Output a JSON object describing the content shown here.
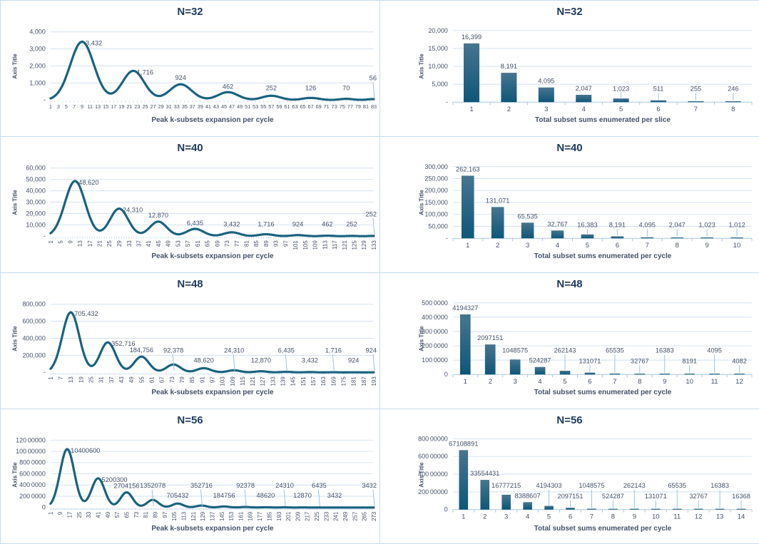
{
  "palette": {
    "series": "#1a627f",
    "bar_top": "#477590",
    "bar_bottom": "#0e5678",
    "title": "#1e3a5f",
    "text": "#44506b",
    "grid": "#d3e1f0",
    "axis": "#a9c7e2",
    "leader": "#9cc3e0",
    "comb": "#a3c2da",
    "border": "#c6dbee"
  },
  "chart_data": [
    {
      "type": "line",
      "title": "N=32",
      "ylabel": "Axis Title",
      "xlabel": "Peak k-subsets expansion per cycle",
      "y_max": 4000,
      "y_ticks": [
        "4,000",
        "3,000",
        "2,000",
        "1,000",
        "-"
      ],
      "x_count": 83,
      "x_ticks_rotated": false,
      "x_ticks": [
        1,
        3,
        5,
        7,
        9,
        11,
        13,
        15,
        17,
        19,
        21,
        23,
        25,
        27,
        29,
        31,
        33,
        35,
        37,
        39,
        41,
        43,
        45,
        47,
        49,
        51,
        53,
        55,
        57,
        59,
        61,
        63,
        65,
        67,
        69,
        71,
        73,
        75,
        77,
        79,
        81,
        83
      ],
      "peaks": [
        {
          "x": 9,
          "v": 3432,
          "label": "3,432"
        },
        {
          "x": 22,
          "v": 1716,
          "label": "1,716"
        },
        {
          "x": 34,
          "v": 924,
          "label": "924"
        },
        {
          "x": 46,
          "v": 462,
          "label": "462"
        },
        {
          "x": 57,
          "v": 252,
          "label": "252"
        },
        {
          "x": 67,
          "v": 126,
          "label": "126"
        },
        {
          "x": 76,
          "v": 70,
          "label": "70"
        },
        {
          "x": 83,
          "v": 56,
          "label": "56"
        }
      ]
    },
    {
      "type": "bar",
      "title": "N=32",
      "ylabel": "Axis Title",
      "xlabel": "Total subset sums enumerated per slice",
      "y_max": 20000,
      "y_ticks": [
        "20,000",
        "15,000",
        "10,000",
        "5,000",
        "-"
      ],
      "categories": [
        1,
        2,
        3,
        4,
        5,
        6,
        7,
        8
      ],
      "values": [
        16399,
        8191,
        4095,
        2047,
        1023,
        511,
        255,
        246
      ],
      "labels": [
        "16,399",
        "8,191",
        "4,095",
        "2,047",
        "1,023",
        "511",
        "255",
        "246"
      ]
    },
    {
      "type": "line",
      "title": "N=40",
      "ylabel": "Axis Title",
      "xlabel": "Peak k-subsets expansion per cycle",
      "y_max": 60000,
      "y_ticks": [
        "60,000",
        "50,000",
        "40,000",
        "30,000",
        "20,000",
        "10,000",
        "-"
      ],
      "x_count": 133,
      "x_ticks_rotated": true,
      "x_ticks": [
        1,
        5,
        9,
        13,
        17,
        21,
        25,
        29,
        33,
        37,
        41,
        45,
        49,
        53,
        57,
        61,
        65,
        69,
        73,
        77,
        81,
        85,
        89,
        93,
        97,
        101,
        105,
        109,
        113,
        117,
        121,
        125,
        129,
        133
      ],
      "peaks": [
        {
          "x": 11,
          "v": 48620,
          "label": "48,620"
        },
        {
          "x": 29,
          "v": 24310,
          "label": "24,310"
        },
        {
          "x": 45,
          "v": 12870,
          "label": "12,870"
        },
        {
          "x": 60,
          "v": 6435,
          "label": "6,435"
        },
        {
          "x": 75,
          "v": 3432,
          "label": "3,432"
        },
        {
          "x": 89,
          "v": 1716,
          "label": "1,716"
        },
        {
          "x": 102,
          "v": 924,
          "label": "924"
        },
        {
          "x": 114,
          "v": 462,
          "label": "462"
        },
        {
          "x": 124,
          "v": 252,
          "label": "252"
        },
        {
          "x": 133,
          "v": 252,
          "label": "252"
        }
      ]
    },
    {
      "type": "bar",
      "title": "N=40",
      "ylabel": "Axis Title",
      "xlabel": "Total subset sums enumerated per cycle",
      "y_max": 300000,
      "y_ticks": [
        "300,000",
        "250,000",
        "200,000",
        "150,000",
        "100,000",
        "50,000",
        "-"
      ],
      "categories": [
        1,
        2,
        3,
        4,
        5,
        6,
        7,
        8,
        9,
        10
      ],
      "values": [
        262163,
        131071,
        65535,
        32767,
        16383,
        8191,
        4095,
        2047,
        1023,
        1012
      ],
      "labels": [
        "262,163",
        "131,071",
        "65,535",
        "32,767",
        "16,383",
        "8,191",
        "4,095",
        "2,047",
        "1,023",
        "1,012"
      ]
    },
    {
      "type": "line",
      "title": "N=48",
      "ylabel": "Axis Title",
      "xlabel": "Peak k-subsets expansion per cycle",
      "y_max": 800000,
      "y_ticks": [
        "800,000",
        "600,000",
        "400,000",
        "200,000",
        "-"
      ],
      "x_count": 193,
      "x_ticks_rotated": true,
      "x_ticks": [
        1,
        7,
        13,
        19,
        25,
        31,
        37,
        43,
        49,
        55,
        61,
        67,
        73,
        79,
        85,
        91,
        97,
        103,
        109,
        115,
        121,
        127,
        133,
        139,
        145,
        151,
        157,
        163,
        169,
        175,
        181,
        187,
        193
      ],
      "peaks": [
        {
          "x": 13,
          "v": 705432,
          "label": "705,432"
        },
        {
          "x": 35,
          "v": 352716,
          "label": "352,716"
        },
        {
          "x": 55,
          "v": 184756,
          "label": "184,756"
        },
        {
          "x": 74,
          "v": 92378,
          "label": "92,378"
        },
        {
          "x": 92,
          "v": 48620,
          "label": "48,620"
        },
        {
          "x": 110,
          "v": 24310,
          "label": "24,310"
        },
        {
          "x": 126,
          "v": 12870,
          "label": "12,870"
        },
        {
          "x": 141,
          "v": 6435,
          "label": "6,435"
        },
        {
          "x": 155,
          "v": 3432,
          "label": "3,432"
        },
        {
          "x": 169,
          "v": 1716,
          "label": "1,716"
        },
        {
          "x": 181,
          "v": 924,
          "label": "924"
        },
        {
          "x": 193,
          "v": 924,
          "label": "924"
        }
      ]
    },
    {
      "type": "bar",
      "title": "N=48",
      "ylabel": "Axis Title",
      "xlabel": "Total subset sums enumerated per cycle",
      "y_max": 5000000,
      "y_ticks": [
        "500 0000",
        "400 0000",
        "300 0000",
        "200 0000",
        "100 0000",
        "0"
      ],
      "categories": [
        1,
        2,
        3,
        4,
        5,
        6,
        7,
        8,
        9,
        10,
        11,
        12
      ],
      "values": [
        4194327,
        2097151,
        1048575,
        524287,
        262143,
        131071,
        65535,
        32767,
        16383,
        8191,
        4095,
        4082
      ],
      "labels": [
        "4194327",
        "2097151",
        "1048575",
        "524287",
        "262143",
        "131071",
        "65535",
        "32767",
        "16383",
        "8191",
        "4095",
        "4082"
      ]
    },
    {
      "type": "line",
      "title": "N=56",
      "ylabel": "Axis Title",
      "xlabel": "Peak k-subsets expansion per cycle",
      "y_max": 12000000,
      "y_ticks": [
        "120 00000",
        "100 00000",
        "800 0000",
        "600 0000",
        "400 0000",
        "200 0000",
        "0"
      ],
      "x_count": 273,
      "x_ticks_rotated": true,
      "x_ticks": [
        1,
        9,
        17,
        25,
        33,
        41,
        49,
        57,
        65,
        73,
        81,
        89,
        97,
        105,
        113,
        121,
        129,
        137,
        145,
        153,
        161,
        169,
        177,
        185,
        193,
        201,
        209,
        217,
        225,
        233,
        241,
        249,
        257,
        265,
        273
      ],
      "peaks": [
        {
          "x": 15,
          "v": 10400600,
          "label": "10400600"
        },
        {
          "x": 41,
          "v": 5200300,
          "label": "5200300"
        },
        {
          "x": 65,
          "v": 2704156,
          "label": "2704156"
        },
        {
          "x": 87,
          "v": 1352078,
          "label": "1352078"
        },
        {
          "x": 108,
          "v": 705432,
          "label": "705432"
        },
        {
          "x": 128,
          "v": 352716,
          "label": "352716"
        },
        {
          "x": 147,
          "v": 184756,
          "label": "184756"
        },
        {
          "x": 165,
          "v": 92378,
          "label": "92378"
        },
        {
          "x": 182,
          "v": 48620,
          "label": "48620"
        },
        {
          "x": 198,
          "v": 24310,
          "label": "24310"
        },
        {
          "x": 213,
          "v": 12870,
          "label": "12870"
        },
        {
          "x": 227,
          "v": 6435,
          "label": "6435"
        },
        {
          "x": 240,
          "v": 3432,
          "label": "3432"
        },
        {
          "x": 273,
          "v": 3432,
          "label": "3432"
        }
      ]
    },
    {
      "type": "bar",
      "title": "N=56",
      "ylabel": "Axis Title",
      "xlabel": "Total subset sums enumerated per cycle",
      "y_max": 80000000,
      "y_ticks": [
        "800 00000",
        "600 00000",
        "400 00000",
        "200 00000",
        "0"
      ],
      "categories": [
        1,
        2,
        3,
        4,
        5,
        6,
        7,
        8,
        9,
        10,
        11,
        12,
        13,
        14
      ],
      "values": [
        67108891,
        33554431,
        16777215,
        8388607,
        4194303,
        2097151,
        1048575,
        524287,
        262143,
        131071,
        65535,
        32767,
        16383,
        16368
      ],
      "labels": [
        "67108891",
        "33554431",
        "16777215",
        "8388607",
        "4194303",
        "2097151",
        "1048575",
        "524287",
        "262143",
        "131071",
        "65535",
        "32767",
        "16383",
        "16368"
      ]
    }
  ]
}
